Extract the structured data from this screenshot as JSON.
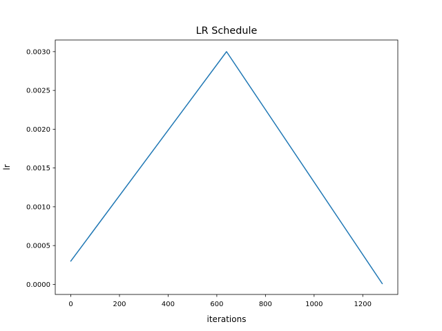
{
  "chart_data": {
    "type": "line",
    "title": "LR Schedule",
    "xlabel": "iterations",
    "ylabel": "lr",
    "xlim": [
      -64,
      1344
    ],
    "ylim": [
      -0.00013,
      0.00315
    ],
    "x_ticks": [
      0,
      200,
      400,
      600,
      800,
      1000,
      1200
    ],
    "x_tick_labels": [
      "0",
      "200",
      "400",
      "600",
      "800",
      "1000",
      "1200"
    ],
    "y_ticks": [
      0.0,
      0.0005,
      0.001,
      0.0015,
      0.002,
      0.0025,
      0.003
    ],
    "y_tick_labels": [
      "0.0000",
      "0.0005",
      "0.0010",
      "0.0015",
      "0.0020",
      "0.0025",
      "0.0030"
    ],
    "grid": false,
    "series": [
      {
        "color": "#1f77b4",
        "x": [
          0,
          640,
          1280
        ],
        "y": [
          0.0003,
          0.003,
          1e-05
        ]
      }
    ]
  }
}
